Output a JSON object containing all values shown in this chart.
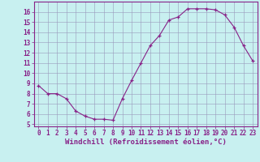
{
  "x": [
    0,
    1,
    2,
    3,
    4,
    5,
    6,
    7,
    8,
    9,
    10,
    11,
    12,
    13,
    14,
    15,
    16,
    17,
    18,
    19,
    20,
    21,
    22,
    23
  ],
  "y": [
    8.8,
    8.0,
    8.0,
    7.5,
    6.3,
    5.8,
    5.5,
    5.5,
    5.4,
    7.5,
    9.3,
    11.0,
    12.7,
    13.7,
    15.2,
    15.5,
    16.3,
    16.3,
    16.3,
    16.2,
    15.7,
    14.5,
    12.7,
    11.2
  ],
  "xlabel": "Windchill (Refroidissement éolien,°C)",
  "xtick_labels": [
    "0",
    "1",
    "2",
    "3",
    "4",
    "5",
    "6",
    "7",
    "8",
    "9",
    "10",
    "11",
    "12",
    "13",
    "14",
    "15",
    "16",
    "17",
    "18",
    "19",
    "20",
    "21",
    "22",
    "23"
  ],
  "ylim": [
    4.8,
    17.0
  ],
  "yticks": [
    5,
    6,
    7,
    8,
    9,
    10,
    11,
    12,
    13,
    14,
    15,
    16
  ],
  "line_color": "#882288",
  "marker_color": "#882288",
  "bg_color": "#c8f0f0",
  "plot_bg_color": "#c8f0f0",
  "grid_color": "#9999bb",
  "spine_color": "#882288",
  "tick_color": "#882288",
  "label_color": "#882288",
  "font_size": 5.5,
  "xlabel_fontsize": 6.5,
  "marker_size": 3.5
}
